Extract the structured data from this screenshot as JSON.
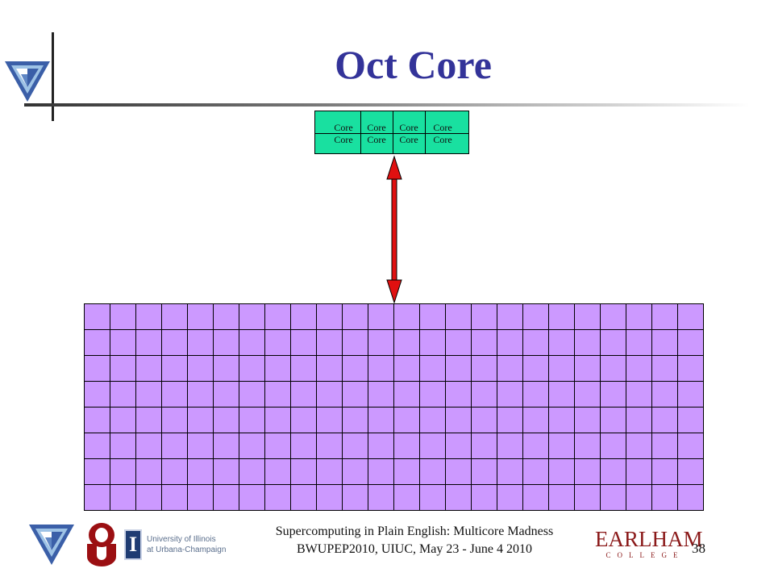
{
  "slide": {
    "title": "Oct Core"
  },
  "chip": {
    "rows": [
      [
        "Core",
        "Core",
        "Core",
        "Core"
      ],
      [
        "Core",
        "Core",
        "Core",
        "Core"
      ]
    ]
  },
  "memory": {
    "rows": 8,
    "cols": 24
  },
  "footer": {
    "line1": "Supercomputing in Plain English: Multicore Madness",
    "line2": "BWUPEP2010, UIUC, May 23 - June 4 2010",
    "page_number": "38",
    "illinois_line1": "University of Illinois",
    "illinois_line2": "at Urbana-Champaign",
    "illinois_mark": "I",
    "earlham_name": "EARLHAM",
    "earlham_sub": "COLLEGE"
  },
  "colors": {
    "title": "#333399",
    "chip": "#19e0a0",
    "memory_cell": "#cc99ff",
    "arrow": "#e01010",
    "earlham": "#8b1a1a"
  },
  "icons": {
    "corner": "triangle-logo-icon",
    "footer_left": "triangle-logo-icon",
    "ou": "ou-logo-icon",
    "illinois": "illinois-logo-icon"
  }
}
